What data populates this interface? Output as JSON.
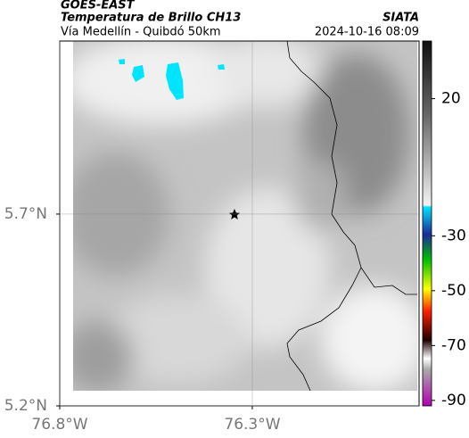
{
  "chart_data": {
    "type": "map",
    "supertitle": "GOES-EAST",
    "title": "Temperatura de Brillo CH13",
    "subtitle": "Vía Medellín - Quibdó 50km",
    "source": "SIATA",
    "timestamp": "2024-10-16 08:09",
    "xlim": [
      -76.8,
      -75.867
    ],
    "ylim": [
      5.2,
      6.151
    ],
    "xticks": [
      {
        "value": -76.8,
        "label": "76.8°W"
      },
      {
        "value": -76.3,
        "label": "76.3°W"
      }
    ],
    "yticks": [
      {
        "value": 5.2,
        "label": "5.2°N"
      },
      {
        "value": 5.7,
        "label": "5.7°N"
      }
    ],
    "grid": true,
    "colorbar": {
      "lim": [
        41,
        -92
      ],
      "ticks": [
        20,
        -30,
        -50,
        -70,
        -90
      ]
    }
  }
}
